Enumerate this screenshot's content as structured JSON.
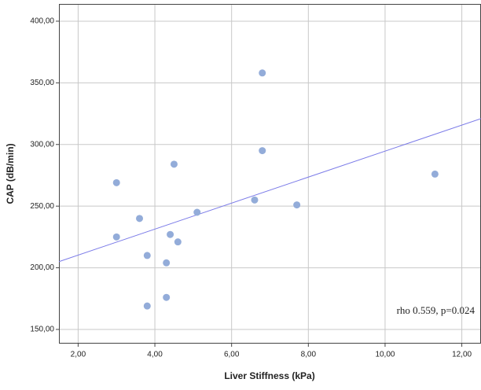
{
  "chart_data": {
    "type": "scatter",
    "x_label": "Liver Stiffness (kPa)",
    "y_label": "CAP (dB/min)",
    "annotation": "rho 0.559, p=0.024",
    "x": [
      3.0,
      3.0,
      3.6,
      3.8,
      3.8,
      4.3,
      4.3,
      4.4,
      4.5,
      4.6,
      5.1,
      6.6,
      6.8,
      6.8,
      7.7,
      11.3
    ],
    "y": [
      269,
      225,
      240,
      210,
      169,
      204,
      176,
      227,
      284,
      221,
      245,
      255,
      358,
      295,
      251,
      276
    ],
    "color": "#93acd9",
    "fit_line": {
      "x": [
        1.5,
        12.5
      ],
      "y": [
        205,
        321
      ],
      "color": "#7b7be8"
    },
    "xlim": [
      1.5,
      12.5
    ],
    "ylim": [
      138.5,
      414
    ],
    "xticks": [
      {
        "value": 2,
        "label": "2,00"
      },
      {
        "value": 4,
        "label": "4,00"
      },
      {
        "value": 6,
        "label": "6,00"
      },
      {
        "value": 8,
        "label": "8,00"
      },
      {
        "value": 10,
        "label": "10,00"
      },
      {
        "value": 12,
        "label": "12,00"
      }
    ],
    "yticks": [
      {
        "value": 150,
        "label": "150,00"
      },
      {
        "value": 200,
        "label": "200,00"
      },
      {
        "value": 250,
        "label": "250,00"
      },
      {
        "value": 300,
        "label": "300,00"
      },
      {
        "value": 350,
        "label": "350,00"
      },
      {
        "value": 400,
        "label": "400,00"
      }
    ],
    "grid": true
  }
}
